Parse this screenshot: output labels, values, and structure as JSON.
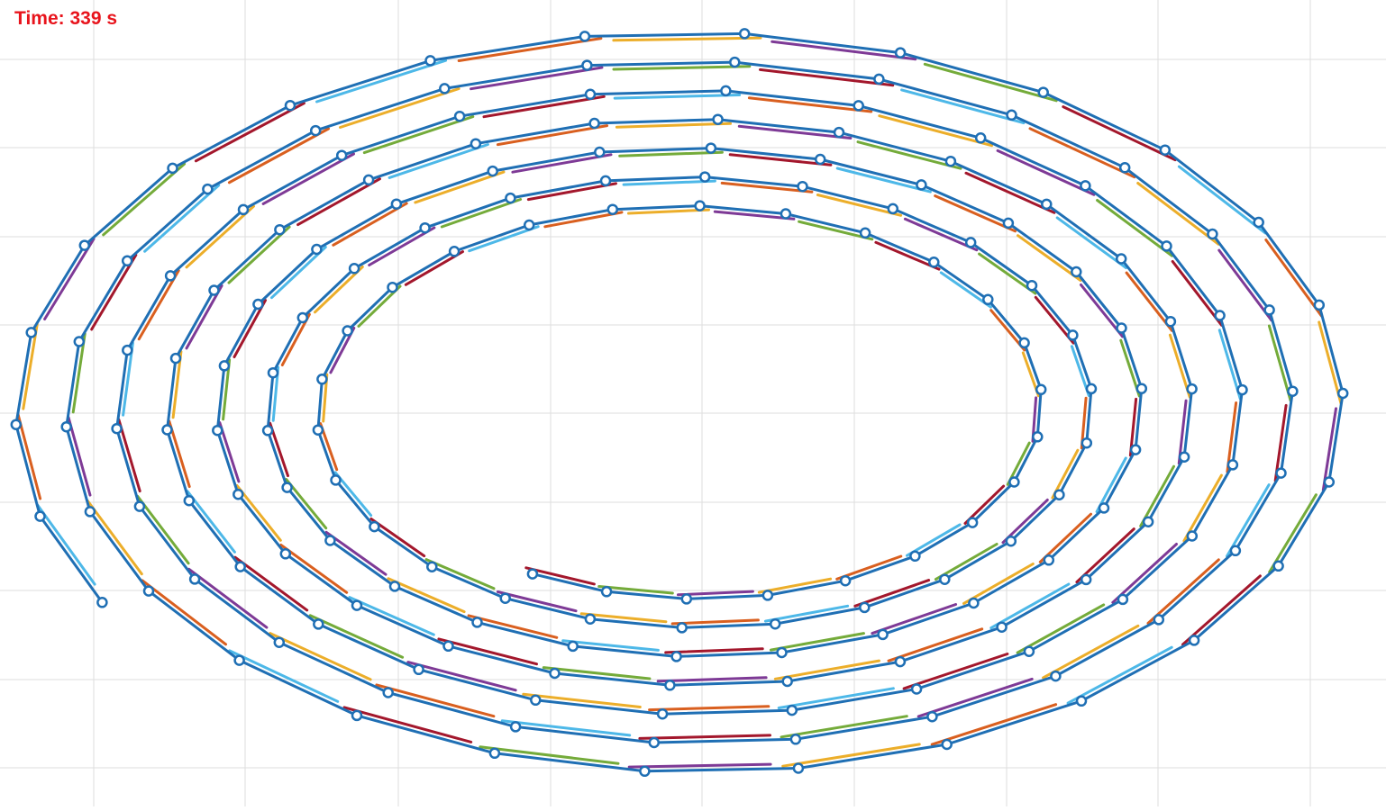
{
  "time_label": "Time: 339 s",
  "colors": {
    "label": "#e8141c",
    "grid": "#dedede",
    "path": "#1f6fb4",
    "segment_palette": [
      "#4db8e8",
      "#d95f1f",
      "#ecae2a",
      "#7e3a96",
      "#74ab3a",
      "#a3172c"
    ]
  },
  "diagram": {
    "grid": true,
    "marker": "circle",
    "rings": 7,
    "start": "outer-left-bottom",
    "end": "inner-bottom-center"
  }
}
